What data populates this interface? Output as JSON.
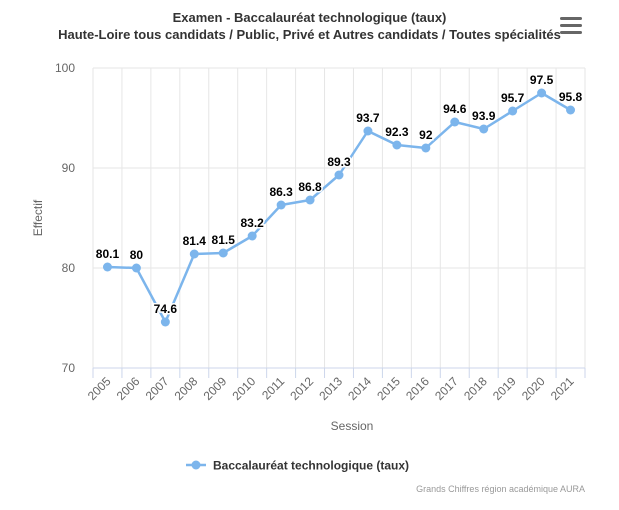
{
  "header": {
    "title": "Examen - Baccalauréat technologique (taux)",
    "subtitle": "Haute-Loire tous candidats / Public, Privé et Autres candidats / Toutes spécialités"
  },
  "menu_icon": "hamburger-menu-icon",
  "credit": "Grands Chiffres région académique AURA",
  "colors": {
    "series": "#7cb5ec",
    "grid": "#e6e6e6",
    "text": "#333333",
    "axis_text": "#666666"
  },
  "chart_data": {
    "type": "line",
    "title": "Examen - Baccalauréat technologique (taux)",
    "subtitle": "Haute-Loire tous candidats / Public, Privé et Autres candidats / Toutes spécialités",
    "xlabel": "Session",
    "ylabel": "Effectif",
    "categories": [
      "2005",
      "2006",
      "2007",
      "2008",
      "2009",
      "2010",
      "2011",
      "2012",
      "2013",
      "2014",
      "2015",
      "2016",
      "2017",
      "2018",
      "2019",
      "2020",
      "2021"
    ],
    "series": [
      {
        "name": "Baccalauréat technologique (taux)",
        "values": [
          80.1,
          80,
          74.6,
          81.4,
          81.5,
          83.2,
          86.3,
          86.8,
          89.3,
          93.7,
          92.3,
          92,
          94.6,
          93.9,
          95.7,
          97.5,
          95.8
        ]
      }
    ],
    "ylim": [
      70,
      100
    ],
    "yticks": [
      70,
      80,
      90,
      100
    ],
    "grid": true,
    "legend": "bottom-center"
  }
}
